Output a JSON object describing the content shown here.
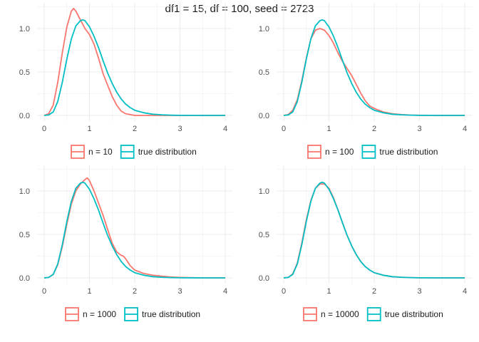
{
  "title": "df1 = 15, df = 100, seed = 2723",
  "colors": {
    "sample": "#F8766D",
    "true": "#00BFC4",
    "grid": "#ebebeb",
    "text": "#4d4d4d"
  },
  "chart_data": [
    {
      "type": "line",
      "xlim": [
        0,
        4
      ],
      "ylim": [
        0,
        1.3
      ],
      "x_ticks": [
        "0",
        "1",
        "2",
        "3",
        "4"
      ],
      "y_ticks": [
        "0.0",
        "0.5",
        "1.0"
      ],
      "grid": true,
      "legend_position": "bottom",
      "series": [
        {
          "name": "n = 10",
          "color": "#F8766D",
          "x": [
            0,
            0.1,
            0.2,
            0.3,
            0.4,
            0.5,
            0.6,
            0.65,
            0.7,
            0.8,
            0.9,
            1.0,
            1.1,
            1.2,
            1.3,
            1.4,
            1.5,
            1.6,
            1.7,
            1.8,
            1.9,
            2.0,
            2.2,
            2.5,
            3.0,
            4.0
          ],
          "y": [
            0.0,
            0.02,
            0.12,
            0.38,
            0.72,
            1.02,
            1.2,
            1.23,
            1.2,
            1.1,
            1.0,
            0.93,
            0.82,
            0.66,
            0.48,
            0.35,
            0.22,
            0.12,
            0.05,
            0.02,
            0.01,
            0.0,
            0.0,
            0.0,
            0.0,
            0.0
          ]
        },
        {
          "name": "true distribution",
          "color": "#00BFC4",
          "x": [
            0,
            0.1,
            0.2,
            0.3,
            0.4,
            0.5,
            0.6,
            0.7,
            0.8,
            0.85,
            0.9,
            1.0,
            1.1,
            1.2,
            1.3,
            1.4,
            1.5,
            1.6,
            1.7,
            1.8,
            1.9,
            2.0,
            2.2,
            2.4,
            2.6,
            2.8,
            3.0,
            3.5,
            4.0
          ],
          "y": [
            0.0,
            0.005,
            0.04,
            0.16,
            0.38,
            0.65,
            0.88,
            1.03,
            1.09,
            1.1,
            1.09,
            1.02,
            0.91,
            0.78,
            0.63,
            0.49,
            0.37,
            0.27,
            0.19,
            0.13,
            0.09,
            0.06,
            0.03,
            0.014,
            0.007,
            0.003,
            0.001,
            0.0,
            0.0
          ]
        }
      ]
    },
    {
      "type": "line",
      "xlim": [
        0,
        4
      ],
      "ylim": [
        0,
        1.3
      ],
      "x_ticks": [
        "0",
        "1",
        "2",
        "3",
        "4"
      ],
      "y_ticks": [
        "0.0",
        "0.5",
        "1.0"
      ],
      "grid": true,
      "legend_position": "bottom",
      "series": [
        {
          "name": "n = 100",
          "color": "#F8766D",
          "x": [
            0,
            0.1,
            0.2,
            0.3,
            0.4,
            0.5,
            0.6,
            0.7,
            0.8,
            0.9,
            1.0,
            1.1,
            1.2,
            1.3,
            1.4,
            1.5,
            1.6,
            1.7,
            1.8,
            1.9,
            2.0,
            2.2,
            2.4,
            2.6,
            2.8,
            3.0,
            3.5,
            4.0
          ],
          "y": [
            0.0,
            0.01,
            0.06,
            0.18,
            0.4,
            0.66,
            0.88,
            0.98,
            1.0,
            0.98,
            0.92,
            0.83,
            0.72,
            0.62,
            0.54,
            0.46,
            0.36,
            0.26,
            0.17,
            0.11,
            0.08,
            0.04,
            0.02,
            0.01,
            0.004,
            0.002,
            0.0,
            0.0
          ]
        },
        {
          "name": "true distribution",
          "color": "#00BFC4",
          "x": [
            0,
            0.1,
            0.2,
            0.3,
            0.4,
            0.5,
            0.6,
            0.7,
            0.8,
            0.85,
            0.9,
            1.0,
            1.1,
            1.2,
            1.3,
            1.4,
            1.5,
            1.6,
            1.7,
            1.8,
            1.9,
            2.0,
            2.2,
            2.4,
            2.6,
            2.8,
            3.0,
            3.5,
            4.0
          ],
          "y": [
            0.0,
            0.005,
            0.04,
            0.16,
            0.38,
            0.65,
            0.88,
            1.03,
            1.09,
            1.1,
            1.09,
            1.02,
            0.91,
            0.78,
            0.63,
            0.49,
            0.37,
            0.27,
            0.19,
            0.13,
            0.09,
            0.06,
            0.03,
            0.014,
            0.007,
            0.003,
            0.001,
            0.0,
            0.0
          ]
        }
      ]
    },
    {
      "type": "line",
      "xlim": [
        0,
        4
      ],
      "ylim": [
        0,
        1.3
      ],
      "x_ticks": [
        "0",
        "1",
        "2",
        "3",
        "4"
      ],
      "y_ticks": [
        "0.0",
        "0.5",
        "1.0"
      ],
      "grid": true,
      "legend_position": "bottom",
      "series": [
        {
          "name": "n = 1000",
          "color": "#F8766D",
          "x": [
            0,
            0.1,
            0.2,
            0.3,
            0.4,
            0.5,
            0.6,
            0.7,
            0.8,
            0.9,
            0.95,
            1.0,
            1.1,
            1.2,
            1.3,
            1.4,
            1.5,
            1.6,
            1.7,
            1.75,
            1.8,
            1.9,
            2.0,
            2.2,
            2.4,
            2.6,
            2.8,
            3.0,
            3.5,
            4.0
          ],
          "y": [
            0.0,
            0.005,
            0.04,
            0.15,
            0.36,
            0.62,
            0.85,
            1.0,
            1.08,
            1.13,
            1.15,
            1.12,
            1.0,
            0.86,
            0.72,
            0.56,
            0.4,
            0.3,
            0.26,
            0.25,
            0.22,
            0.14,
            0.09,
            0.05,
            0.03,
            0.02,
            0.01,
            0.005,
            0.0,
            0.0
          ]
        },
        {
          "name": "true distribution",
          "color": "#00BFC4",
          "x": [
            0,
            0.1,
            0.2,
            0.3,
            0.4,
            0.5,
            0.6,
            0.7,
            0.8,
            0.85,
            0.9,
            1.0,
            1.1,
            1.2,
            1.3,
            1.4,
            1.5,
            1.6,
            1.7,
            1.8,
            1.9,
            2.0,
            2.2,
            2.4,
            2.6,
            2.8,
            3.0,
            3.5,
            4.0
          ],
          "y": [
            0.0,
            0.005,
            0.04,
            0.16,
            0.38,
            0.65,
            0.88,
            1.03,
            1.09,
            1.1,
            1.09,
            1.02,
            0.91,
            0.78,
            0.63,
            0.49,
            0.37,
            0.27,
            0.19,
            0.13,
            0.09,
            0.06,
            0.03,
            0.014,
            0.007,
            0.003,
            0.001,
            0.0,
            0.0
          ]
        }
      ]
    },
    {
      "type": "line",
      "xlim": [
        0,
        4
      ],
      "ylim": [
        0,
        1.3
      ],
      "x_ticks": [
        "0",
        "1",
        "2",
        "3",
        "4"
      ],
      "y_ticks": [
        "0.0",
        "0.5",
        "1.0"
      ],
      "grid": true,
      "legend_position": "bottom",
      "series": [
        {
          "name": "n = 10000",
          "color": "#F8766D",
          "x": [
            0,
            0.1,
            0.2,
            0.3,
            0.4,
            0.5,
            0.6,
            0.7,
            0.8,
            0.9,
            1.0,
            1.1,
            1.2,
            1.3,
            1.4,
            1.5,
            1.6,
            1.7,
            1.8,
            1.9,
            2.0,
            2.2,
            2.4,
            2.6,
            2.8,
            3.0,
            3.5,
            4.0
          ],
          "y": [
            0.0,
            0.006,
            0.045,
            0.17,
            0.4,
            0.67,
            0.89,
            1.03,
            1.08,
            1.08,
            1.03,
            0.92,
            0.78,
            0.63,
            0.49,
            0.37,
            0.27,
            0.19,
            0.13,
            0.09,
            0.06,
            0.03,
            0.014,
            0.007,
            0.003,
            0.001,
            0.0,
            0.0
          ]
        },
        {
          "name": "true distribution",
          "color": "#00BFC4",
          "x": [
            0,
            0.1,
            0.2,
            0.3,
            0.4,
            0.5,
            0.6,
            0.7,
            0.8,
            0.85,
            0.9,
            1.0,
            1.1,
            1.2,
            1.3,
            1.4,
            1.5,
            1.6,
            1.7,
            1.8,
            1.9,
            2.0,
            2.2,
            2.4,
            2.6,
            2.8,
            3.0,
            3.5,
            4.0
          ],
          "y": [
            0.0,
            0.005,
            0.04,
            0.16,
            0.38,
            0.65,
            0.88,
            1.03,
            1.09,
            1.1,
            1.09,
            1.02,
            0.91,
            0.78,
            0.63,
            0.49,
            0.37,
            0.27,
            0.19,
            0.13,
            0.09,
            0.06,
            0.03,
            0.014,
            0.007,
            0.003,
            0.001,
            0.0,
            0.0
          ]
        }
      ]
    }
  ]
}
